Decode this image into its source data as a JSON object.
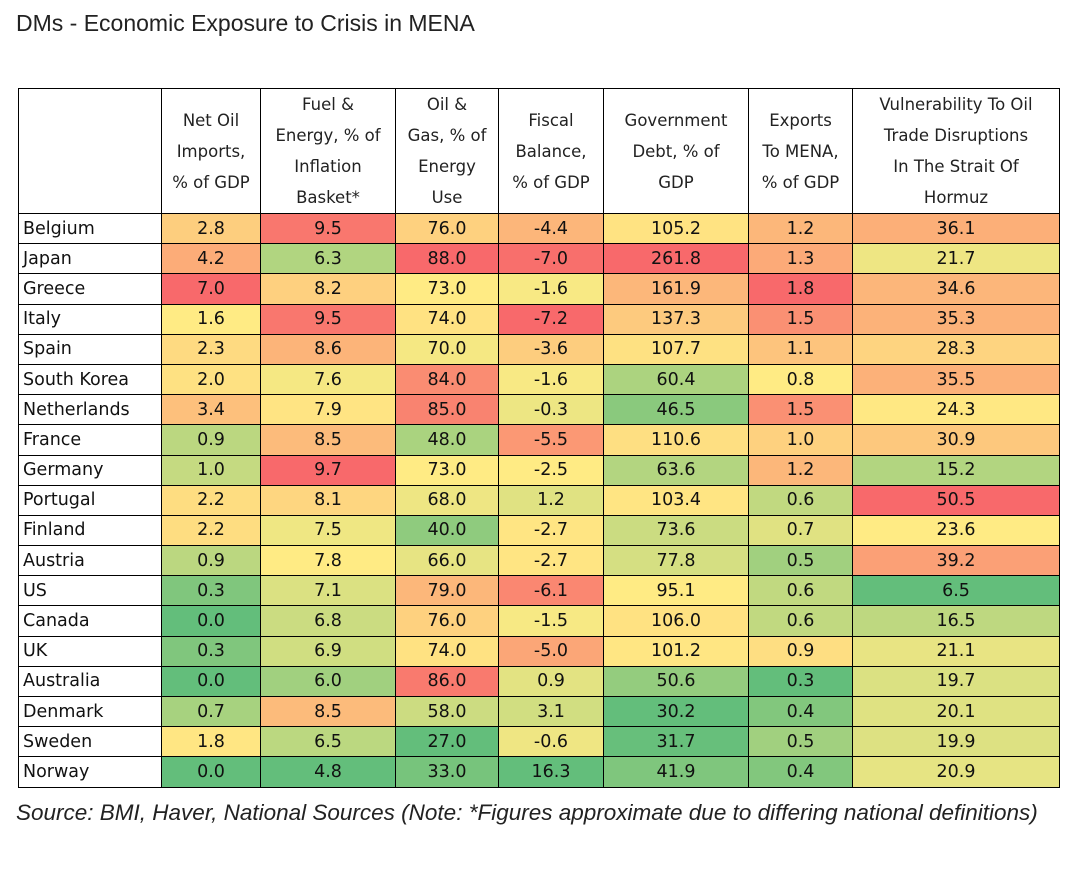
{
  "chart_data": {
    "type": "heatmap",
    "title": "DMs - Economic Exposure to Crisis in MENA",
    "columns": [
      {
        "label": "Net Oil Imports, % of GDP",
        "lines": [
          "Net Oil",
          "Imports,",
          "% of GDP"
        ]
      },
      {
        "label": "Fuel & Energy, % of Inflation Basket*",
        "lines": [
          "Fuel &",
          "Energy, % of",
          "Inflation",
          "Basket*"
        ]
      },
      {
        "label": "Oil & Gas, % of Energy Use",
        "lines": [
          "Oil &",
          "Gas, % of",
          "Energy",
          "Use"
        ]
      },
      {
        "label": "Fiscal Balance, % of GDP",
        "lines": [
          "Fiscal",
          "Balance,",
          "% of GDP"
        ]
      },
      {
        "label": "Government Debt, % of GDP",
        "lines": [
          "Government",
          "Debt, % of",
          "GDP"
        ]
      },
      {
        "label": "Exports To MENA, % of GDP",
        "lines": [
          "Exports",
          "To MENA,",
          "% of GDP"
        ]
      },
      {
        "label": "Vulnerability To Oil Trade Disruptions In The Strait Of Hormuz",
        "lines": [
          "Vulnerability To Oil",
          "Trade Disruptions",
          "In The Strait Of",
          "Hormuz"
        ]
      }
    ],
    "rows": [
      {
        "country": "Belgium",
        "values": [
          "2.8",
          "9.5",
          "76.0",
          "-4.4",
          "105.2",
          "1.2",
          "36.1"
        ]
      },
      {
        "country": "Japan",
        "values": [
          "4.2",
          "6.3",
          "88.0",
          "-7.0",
          "261.8",
          "1.3",
          "21.7"
        ]
      },
      {
        "country": "Greece",
        "values": [
          "7.0",
          "8.2",
          "73.0",
          "-1.6",
          "161.9",
          "1.8",
          "34.6"
        ]
      },
      {
        "country": "Italy",
        "values": [
          "1.6",
          "9.5",
          "74.0",
          "-7.2",
          "137.3",
          "1.5",
          "35.3"
        ]
      },
      {
        "country": "Spain",
        "values": [
          "2.3",
          "8.6",
          "70.0",
          "-3.6",
          "107.7",
          "1.1",
          "28.3"
        ]
      },
      {
        "country": "South Korea",
        "values": [
          "2.0",
          "7.6",
          "84.0",
          "-1.6",
          "60.4",
          "0.8",
          "35.5"
        ]
      },
      {
        "country": "Netherlands",
        "values": [
          "3.4",
          "7.9",
          "85.0",
          "-0.3",
          "46.5",
          "1.5",
          "24.3"
        ]
      },
      {
        "country": "France",
        "values": [
          "0.9",
          "8.5",
          "48.0",
          "-5.5",
          "110.6",
          "1.0",
          "30.9"
        ]
      },
      {
        "country": "Germany",
        "values": [
          "1.0",
          "9.7",
          "73.0",
          "-2.5",
          "63.6",
          "1.2",
          "15.2"
        ]
      },
      {
        "country": "Portugal",
        "values": [
          "2.2",
          "8.1",
          "68.0",
          "1.2",
          "103.4",
          "0.6",
          "50.5"
        ]
      },
      {
        "country": "Finland",
        "values": [
          "2.2",
          "7.5",
          "40.0",
          "-2.7",
          "73.6",
          "0.7",
          "23.6"
        ]
      },
      {
        "country": "Austria",
        "values": [
          "0.9",
          "7.8",
          "66.0",
          "-2.7",
          "77.8",
          "0.5",
          "39.2"
        ]
      },
      {
        "country": "US",
        "values": [
          "0.3",
          "7.1",
          "79.0",
          "-6.1",
          "95.1",
          "0.6",
          "6.5"
        ]
      },
      {
        "country": "Canada",
        "values": [
          "0.0",
          "6.8",
          "76.0",
          "-1.5",
          "106.0",
          "0.6",
          "16.5"
        ]
      },
      {
        "country": "UK",
        "values": [
          "0.3",
          "6.9",
          "74.0",
          "-5.0",
          "101.2",
          "0.9",
          "21.1"
        ]
      },
      {
        "country": "Australia",
        "values": [
          "0.0",
          "6.0",
          "86.0",
          "0.9",
          "50.6",
          "0.3",
          "19.7"
        ]
      },
      {
        "country": "Denmark",
        "values": [
          "0.7",
          "8.5",
          "58.0",
          "3.1",
          "30.2",
          "0.4",
          "20.1"
        ]
      },
      {
        "country": "Sweden",
        "values": [
          "1.8",
          "6.5",
          "27.0",
          "-0.6",
          "31.7",
          "0.5",
          "19.9"
        ]
      },
      {
        "country": "Norway",
        "values": [
          "0.0",
          "4.8",
          "33.0",
          "16.3",
          "41.9",
          "0.4",
          "20.9"
        ]
      }
    ],
    "high_is_worse": [
      true,
      true,
      true,
      false,
      true,
      true,
      true
    ],
    "color_scale": {
      "good": "#63be7b",
      "mid": "#ffeb84",
      "bad": "#f8696b"
    }
  },
  "source_note": "Source: BMI, Haver, National Sources (Note: *Figures approximate due to differing national definitions)"
}
